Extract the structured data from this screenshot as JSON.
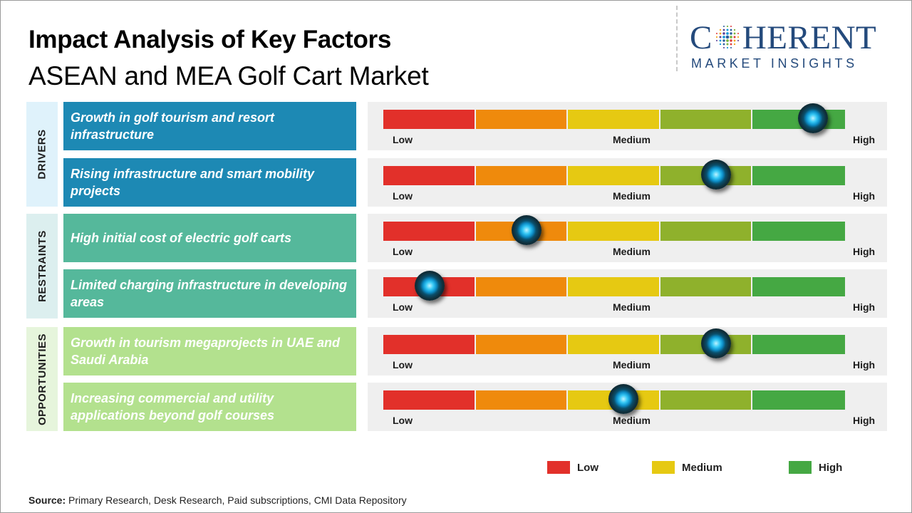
{
  "header": {
    "title": "Impact Analysis of Key Factors",
    "subtitle": "ASEAN and MEA Golf Cart Market"
  },
  "logo": {
    "brand_before": "C",
    "brand_after": "HERENT",
    "tagline": "MARKET INSIGHTS",
    "color": "#244a7c"
  },
  "colors": {
    "segments": [
      "#e2302a",
      "#ef8a0c",
      "#e6c912",
      "#8fb12c",
      "#45a843"
    ],
    "drivers_group": "#dff2fb",
    "drivers_factor": "#1d89b4",
    "restraints_group": "#dcefef",
    "restraints_factor": "#55b89b",
    "opportunities_group": "#e6f5dc",
    "opportunities_factor": "#b3e18e"
  },
  "scale_labels": {
    "low": "Low",
    "medium": "Medium",
    "high": "High"
  },
  "chart_data": {
    "type": "gauge",
    "scale": [
      "Low",
      "Medium",
      "High"
    ],
    "range": [
      0,
      1
    ],
    "groups": [
      {
        "name": "DRIVERS",
        "factors": [
          {
            "label": "Growth in golf tourism and resort infrastructure",
            "value": 0.93
          },
          {
            "label": "Rising infrastructure and smart mobility projects",
            "value": 0.72
          }
        ]
      },
      {
        "name": "RESTRAINTS",
        "factors": [
          {
            "label": "High initial cost of electric golf carts",
            "value": 0.31
          },
          {
            "label": "Limited charging infrastructure in developing areas",
            "value": 0.1
          }
        ]
      },
      {
        "name": "OPPORTUNITIES",
        "factors": [
          {
            "label": "Growth in tourism megaprojects in UAE and Saudi Arabia",
            "value": 0.72
          },
          {
            "label": "Increasing commercial and utility applications beyond golf courses",
            "value": 0.52
          }
        ]
      }
    ]
  },
  "legend": [
    {
      "label": "Low",
      "color": "#e2302a"
    },
    {
      "label": "Medium",
      "color": "#e6c912"
    },
    {
      "label": "High",
      "color": "#45a843"
    }
  ],
  "source": {
    "label": "Source:",
    "text": "Primary Research, Desk Research, Paid subscriptions, CMI Data Repository"
  }
}
